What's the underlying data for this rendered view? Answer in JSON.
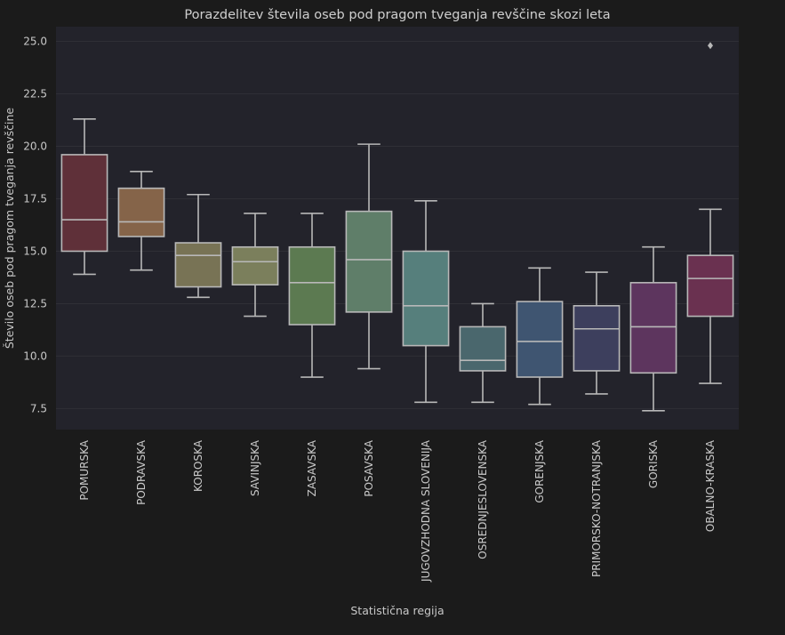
{
  "chart_data": {
    "type": "box",
    "title": "Porazdelitev števila oseb pod pragom tveganja revščine skozi leta",
    "xlabel": "Statistična regija",
    "ylabel": "Število oseb pod pragom tveganja revščine",
    "ylim": [
      6.5,
      25.7
    ],
    "yticks": [
      7.5,
      10.0,
      12.5,
      15.0,
      17.5,
      20.0,
      22.5,
      25.0
    ],
    "ytick_labels": [
      "7.5",
      "10.0",
      "12.5",
      "15.0",
      "17.5",
      "20.0",
      "22.5",
      "25.0"
    ],
    "grid": true,
    "categories": [
      "POMURSKA",
      "PODRAVSKA",
      "KOROSKA",
      "SAVINJSKA",
      "ZASAVSKA",
      "POSAVSKA",
      "JUGOVZHODNA SLOVENIJA",
      "OSREDNJESLOVENSKA",
      "GORENJSKA",
      "PRIMORSKO-NOTRANJSKA",
      "GORISKA",
      "OBALNO-KRASKA"
    ],
    "boxes": [
      {
        "min": 13.9,
        "q1": 15.0,
        "median": 16.5,
        "q3": 19.6,
        "max": 21.3,
        "outliers": []
      },
      {
        "min": 14.1,
        "q1": 15.7,
        "median": 16.4,
        "q3": 18.0,
        "max": 18.8,
        "outliers": []
      },
      {
        "min": 12.8,
        "q1": 13.3,
        "median": 14.8,
        "q3": 15.4,
        "max": 17.7,
        "outliers": []
      },
      {
        "min": 11.9,
        "q1": 13.4,
        "median": 14.5,
        "q3": 15.2,
        "max": 16.8,
        "outliers": []
      },
      {
        "min": 9.0,
        "q1": 11.5,
        "median": 13.5,
        "q3": 15.2,
        "max": 16.8,
        "outliers": []
      },
      {
        "min": 9.4,
        "q1": 12.1,
        "median": 14.6,
        "q3": 16.9,
        "max": 20.1,
        "outliers": []
      },
      {
        "min": 7.8,
        "q1": 10.5,
        "median": 12.4,
        "q3": 15.0,
        "max": 17.4,
        "outliers": []
      },
      {
        "min": 7.8,
        "q1": 9.3,
        "median": 9.8,
        "q3": 11.4,
        "max": 12.5,
        "outliers": []
      },
      {
        "min": 7.7,
        "q1": 9.0,
        "median": 10.7,
        "q3": 12.6,
        "max": 14.2,
        "outliers": []
      },
      {
        "min": 8.2,
        "q1": 9.3,
        "median": 11.3,
        "q3": 12.4,
        "max": 14.0,
        "outliers": []
      },
      {
        "min": 7.4,
        "q1": 9.2,
        "median": 11.4,
        "q3": 13.5,
        "max": 15.2,
        "outliers": []
      },
      {
        "min": 8.7,
        "q1": 11.9,
        "median": 13.7,
        "q3": 14.8,
        "max": 17.0,
        "outliers": [
          24.8
        ]
      }
    ],
    "colors": [
      "#5f3039",
      "#856449",
      "#787355",
      "#7b7f5c",
      "#5c7a51",
      "#5f7e69",
      "#567f7c",
      "#4a676d",
      "#3f5571",
      "#3d3f5d",
      "#5d355e",
      "#6a3150"
    ],
    "style": {
      "background": "#1b1b1b",
      "plot_background": "#23232b",
      "grid_color": "#2f2f36",
      "line_color": "#b8b8b8",
      "text_color": "#c8c8c8"
    }
  }
}
